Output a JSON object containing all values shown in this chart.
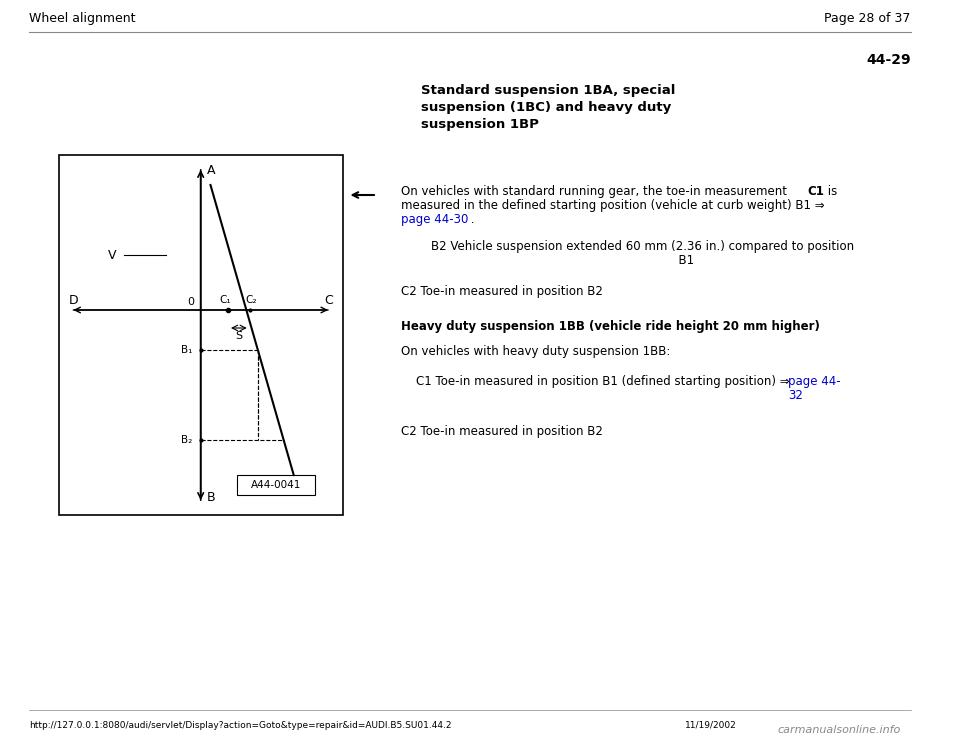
{
  "page_header_left": "Wheel alignment",
  "page_header_right": "Page 28 of 37",
  "page_number": "44-29",
  "section_title_line1": "Standard suspension 1BA, special",
  "section_title_line2": "suspension (1BC) and heavy duty",
  "section_title_line3": "suspension 1BP",
  "paragraph1": "On vehicles with standard running gear, the toe-in measurement C1 is\nmeasured in the defined starting position (vehicle at curb weight) B1 ⇒\npage 44-30 .",
  "paragraph1_link": "page 44-30",
  "paragraph2": "    B2 Vehicle suspension extended 60 mm (2.36 in.) compared to position\n                                                                              B1",
  "paragraph3": "C2 Toe-in measured in position B2",
  "paragraph4_bold": "Heavy duty suspension 1BB (vehicle ride height 20 mm higher)",
  "paragraph5": "On vehicles with heavy duty suspension 1BB:",
  "paragraph6": " C1 Toe-in measured in position B1 (defined starting position) ⇒ page 44-\n                                                                              32",
  "paragraph6_link": "page 44-\n32",
  "paragraph7": "C2 Toe-in measured in position B2",
  "diagram_label_A": "A",
  "diagram_label_B": "B",
  "diagram_label_V": "V",
  "diagram_label_D": "D",
  "diagram_label_C": "C",
  "diagram_label_O": "0",
  "diagram_label_C1": "C₁",
  "diagram_label_C2": "C₂",
  "diagram_label_B1": "B₁",
  "diagram_label_B2": "B₂",
  "diagram_label_S": "S",
  "diagram_label_ref": "A44-0041",
  "footer_url": "http://127.0.0.1:8080/audi/servlet/Display?action=Goto&type=repair&id=AUDI.B5.SU01.44.2",
  "footer_date": "11/19/2002",
  "footer_brand": "carmanualsonline.info",
  "bg_color": "#ffffff",
  "text_color": "#000000",
  "link_color": "#0000cc",
  "line_color": "#000000",
  "header_line_color": "#888888",
  "diagram_bg": "#ffffff"
}
